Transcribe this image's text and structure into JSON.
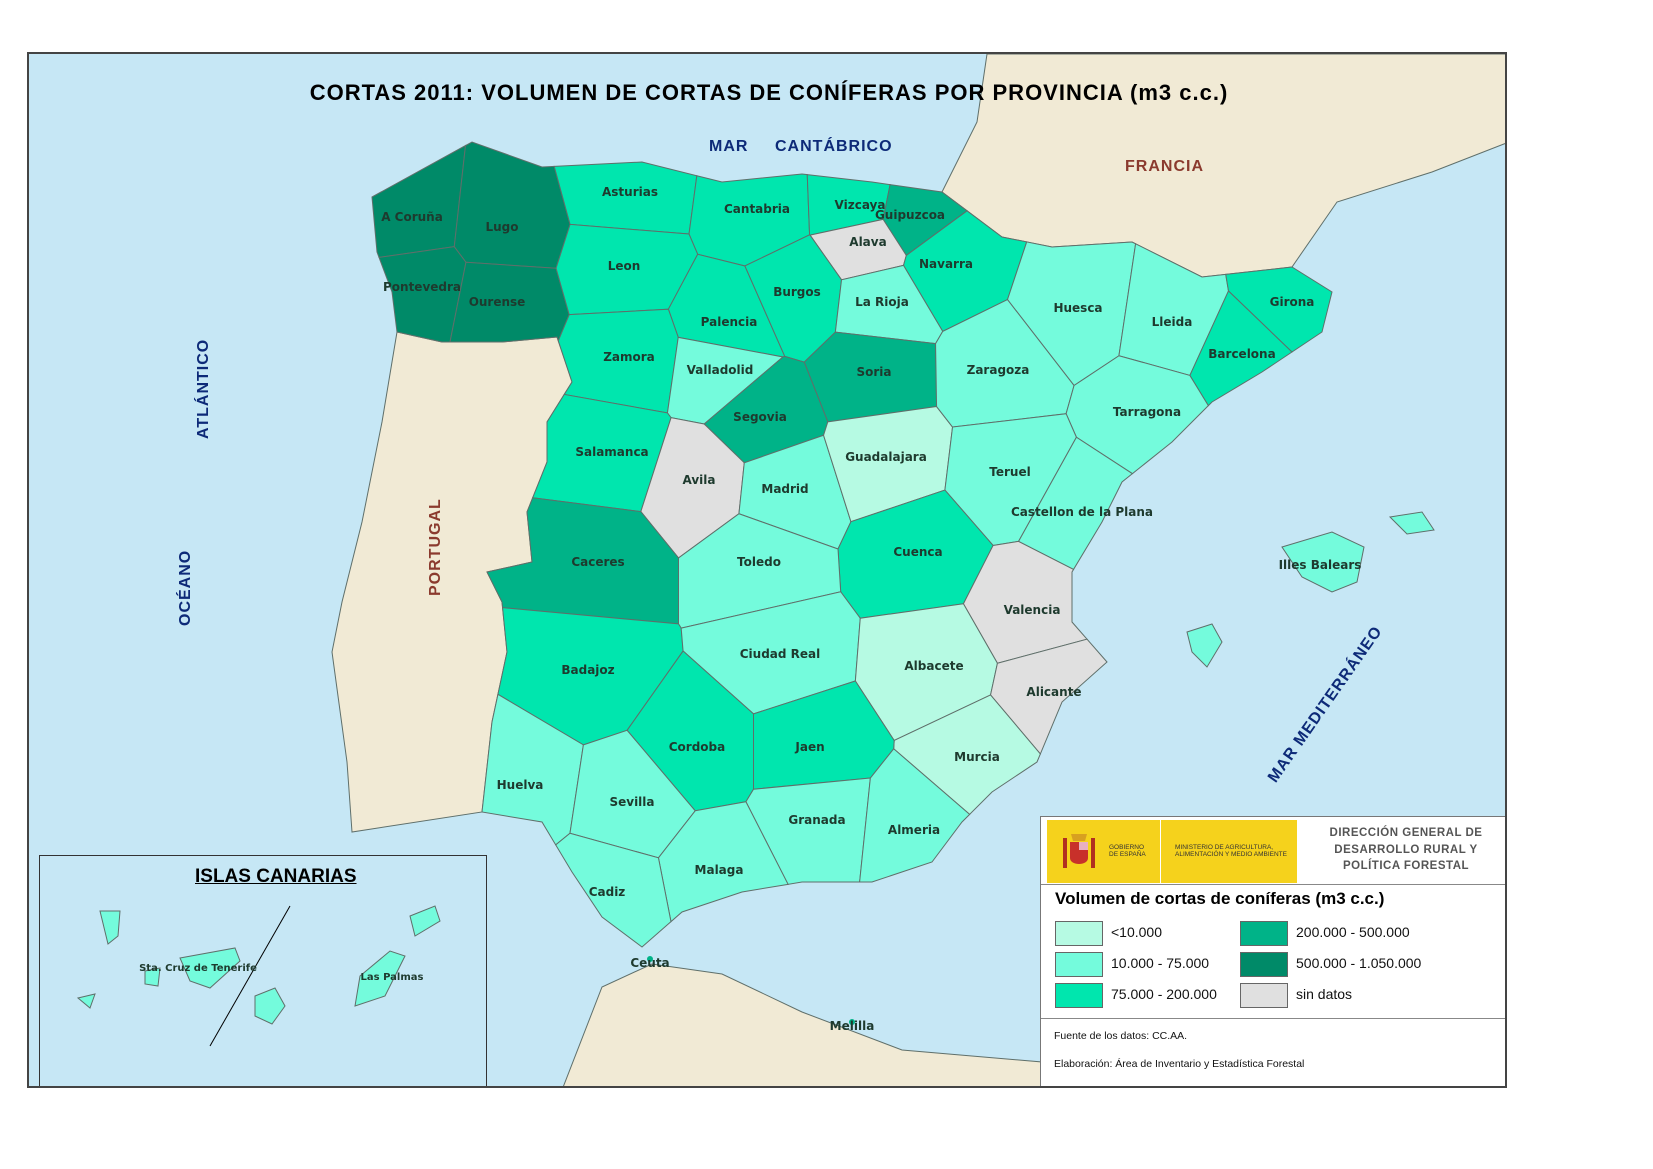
{
  "title": "CORTAS 2011: VOLUMEN DE CORTAS DE CONÍFERAS POR PROVINCIA (m3 c.c.)",
  "seas": {
    "mar": "MAR",
    "cantabrico": "CANTÁBRICO",
    "atlantico": "ATLÁNTICO",
    "oceano": "OCÉANO",
    "mediterraneo": "MAR MEDITERRÁNEO"
  },
  "countries": {
    "francia": "FRANCIA",
    "portugal": "PORTUGAL"
  },
  "colors": {
    "sea": "#c6e7f5",
    "foreign_land": "#f1ead5",
    "border": "#5f6f6a"
  },
  "classes": [
    {
      "label": "<10.000",
      "color": "#b6fae3"
    },
    {
      "label": "10.000 - 75.000",
      "color": "#74fbdc"
    },
    {
      "label": "75.000 - 200.000",
      "color": "#00e6ae"
    },
    {
      "label": "200.000 - 500.000",
      "color": "#00b388"
    },
    {
      "label": "500.000 - 1.050.000",
      "color": "#008a68"
    },
    {
      "label": "sin datos",
      "color": "#e0e0e0"
    }
  ],
  "provinces": [
    {
      "name": "A Coruña",
      "class": 4
    },
    {
      "name": "Lugo",
      "class": 4
    },
    {
      "name": "Pontevedra",
      "class": 4
    },
    {
      "name": "Ourense",
      "class": 4
    },
    {
      "name": "Asturias",
      "class": 2
    },
    {
      "name": "Cantabria",
      "class": 2
    },
    {
      "name": "Vizcaya",
      "class": 2
    },
    {
      "name": "Guipuzcoa",
      "class": 3
    },
    {
      "name": "Alava",
      "class": 5
    },
    {
      "name": "Navarra",
      "class": 2
    },
    {
      "name": "Leon",
      "class": 2
    },
    {
      "name": "Palencia",
      "class": 2
    },
    {
      "name": "Burgos",
      "class": 2
    },
    {
      "name": "La Rioja",
      "class": 1
    },
    {
      "name": "Zamora",
      "class": 2
    },
    {
      "name": "Valladolid",
      "class": 1
    },
    {
      "name": "Soria",
      "class": 3
    },
    {
      "name": "Segovia",
      "class": 3
    },
    {
      "name": "Salamanca",
      "class": 2
    },
    {
      "name": "Avila",
      "class": 5
    },
    {
      "name": "Madrid",
      "class": 1
    },
    {
      "name": "Guadalajara",
      "class": 0
    },
    {
      "name": "Huesca",
      "class": 1
    },
    {
      "name": "Lleida",
      "class": 1
    },
    {
      "name": "Girona",
      "class": 2
    },
    {
      "name": "Barcelona",
      "class": 2
    },
    {
      "name": "Zaragoza",
      "class": 1
    },
    {
      "name": "Tarragona",
      "class": 1
    },
    {
      "name": "Teruel",
      "class": 1
    },
    {
      "name": "Castellon de la Plana",
      "class": 1
    },
    {
      "name": "Cuenca",
      "class": 2
    },
    {
      "name": "Valencia",
      "class": 5
    },
    {
      "name": "Caceres",
      "class": 3
    },
    {
      "name": "Toledo",
      "class": 1
    },
    {
      "name": "Badajoz",
      "class": 2
    },
    {
      "name": "Ciudad Real",
      "class": 1
    },
    {
      "name": "Albacete",
      "class": 0
    },
    {
      "name": "Alicante",
      "class": 5
    },
    {
      "name": "Murcia",
      "class": 0
    },
    {
      "name": "Cordoba",
      "class": 2
    },
    {
      "name": "Jaen",
      "class": 2
    },
    {
      "name": "Huelva",
      "class": 1
    },
    {
      "name": "Sevilla",
      "class": 1
    },
    {
      "name": "Granada",
      "class": 1
    },
    {
      "name": "Almeria",
      "class": 1
    },
    {
      "name": "Malaga",
      "class": 1
    },
    {
      "name": "Cadiz",
      "class": 1
    },
    {
      "name": "Illes Balears",
      "class": 1
    }
  ],
  "cities": {
    "ceuta": "Ceuta",
    "melilla": "Melilla"
  },
  "canarias": {
    "title": "ISLAS CANARIAS",
    "provinces": [
      {
        "name": "Sta. Cruz de Tenerife",
        "class": 1
      },
      {
        "name": "Las Palmas",
        "class": 1
      }
    ]
  },
  "legend": {
    "logo_gobierno": "GOBIERNO DE ESPAÑA",
    "logo_ministerio": "MINISTERIO DE AGRICULTURA, ALIMENTACIÓN Y MEDIO AMBIENTE",
    "direccion": "DIRECCIÓN GENERAL DE DESARROLLO RURAL Y POLÍTICA FORESTAL",
    "title": "Volumen de cortas de coníferas (m3 c.c.)",
    "source": "Fuente de los datos: CC.AA.",
    "elaboracion": "Elaboración: Área de Inventario y Estadística Forestal"
  }
}
